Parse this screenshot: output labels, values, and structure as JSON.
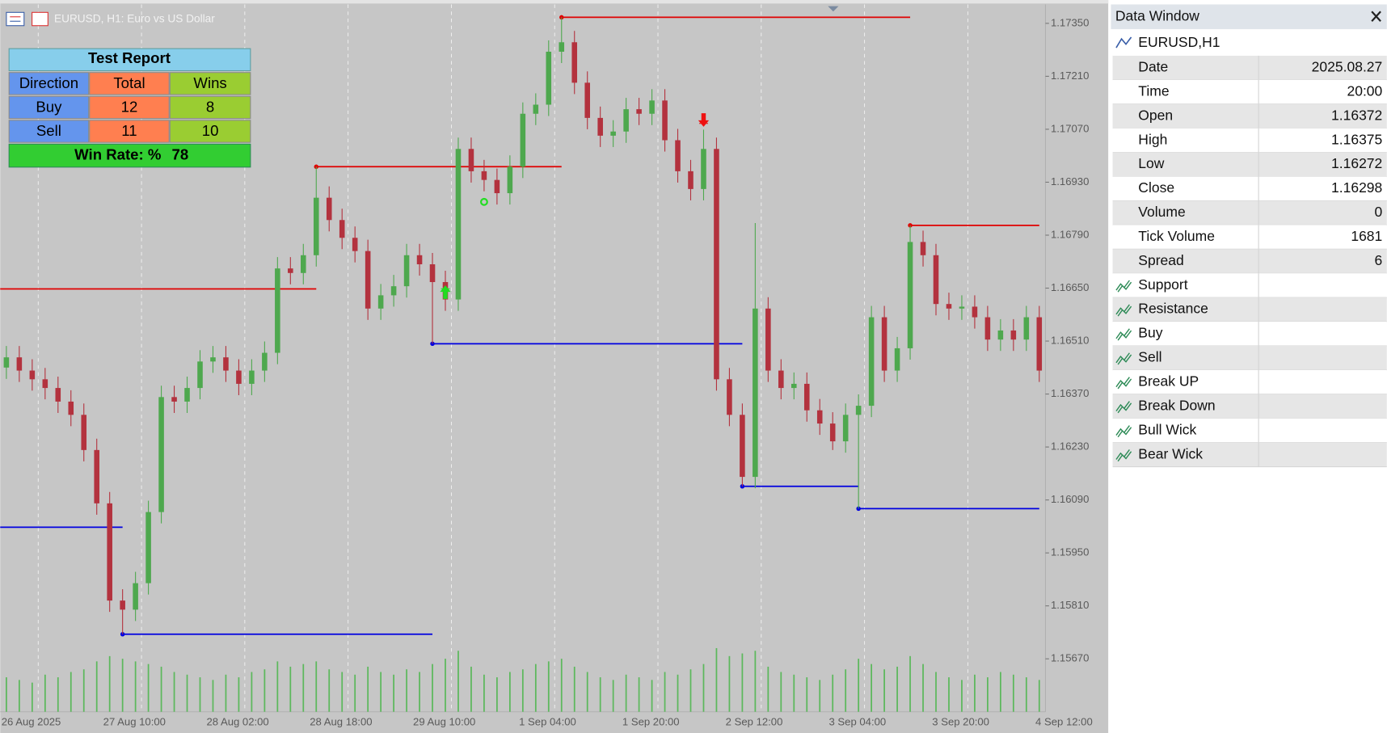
{
  "chart": {
    "type": "candlestick",
    "header": "EURUSD, H1:  Euro vs US Dollar",
    "ylim": [
      1.1553,
      1.174
    ],
    "yticks": [
      {
        "value": 1.1735,
        "label": "1.17350"
      },
      {
        "value": 1.1721,
        "label": "1.17210"
      },
      {
        "value": 1.1707,
        "label": "1.17070"
      },
      {
        "value": 1.1693,
        "label": "1.16930"
      },
      {
        "value": 1.1679,
        "label": "1.16790"
      },
      {
        "value": 1.1665,
        "label": "1.16650"
      },
      {
        "value": 1.1651,
        "label": "1.16510"
      },
      {
        "value": 1.1637,
        "label": "1.16370"
      },
      {
        "value": 1.1623,
        "label": "1.16230"
      },
      {
        "value": 1.1609,
        "label": "1.16090"
      },
      {
        "value": 1.1595,
        "label": "1.15950"
      },
      {
        "value": 1.1581,
        "label": "1.15810"
      },
      {
        "value": 1.1567,
        "label": "1.15670"
      }
    ],
    "xlabels": [
      "26 Aug 2025",
      "27 Aug 10:00",
      "28 Aug 02:00",
      "28 Aug 18:00",
      "29 Aug 10:00",
      "1 Sep 04:00",
      "1 Sep 20:00",
      "2 Sep 12:00",
      "3 Sep 04:00",
      "3 Sep 20:00",
      "4 Sep 12:00"
    ],
    "candles": {
      "open": [
        1.1644,
        1.16467,
        1.16432,
        1.16409,
        1.16386,
        1.1635,
        1.16315,
        1.16222,
        1.16081,
        1.15824,
        1.158,
        1.1587,
        1.16058,
        1.16362,
        1.1635,
        1.16386,
        1.16456,
        1.16467,
        1.16432,
        1.16397,
        1.16432,
        1.16479,
        1.16702,
        1.1669,
        1.16737,
        1.16889,
        1.1683,
        1.16783,
        1.16748,
        1.16596,
        1.16631,
        1.16655,
        1.16737,
        1.16713,
        1.16666,
        1.1662,
        1.17018,
        1.16959,
        1.16936,
        1.16901,
        1.16971,
        1.17111,
        1.17135,
        1.17275,
        1.173,
        1.17193,
        1.171,
        1.17053,
        1.17064,
        1.17123,
        1.17111,
        1.17146,
        1.17041,
        1.16959,
        1.16912,
        1.17018,
        1.16409,
        1.16315,
        1.16151,
        1.16596,
        1.16432,
        1.16386,
        1.16397,
        1.16327,
        1.16292,
        1.16245,
        1.16315,
        1.16339,
        1.16573,
        1.16432,
        1.16491,
        1.16772,
        1.16737,
        1.16608,
        1.16596,
        1.16601,
        1.16573,
        1.16514,
        1.16538,
        1.16514,
        1.16573
      ],
      "high": [
        1.16497,
        1.16497,
        1.16462,
        1.16439,
        1.16416,
        1.1638,
        1.16345,
        1.16252,
        1.16111,
        1.15854,
        1.159,
        1.16088,
        1.16392,
        1.16392,
        1.16416,
        1.16486,
        1.16497,
        1.16497,
        1.16462,
        1.16462,
        1.16509,
        1.16732,
        1.16732,
        1.16767,
        1.16971,
        1.16919,
        1.1686,
        1.16813,
        1.16778,
        1.16661,
        1.16685,
        1.16767,
        1.16767,
        1.16743,
        1.16696,
        1.17048,
        1.17048,
        1.16989,
        1.16966,
        1.17001,
        1.17141,
        1.17165,
        1.17305,
        1.17366,
        1.1733,
        1.17223,
        1.1713,
        1.17094,
        1.17153,
        1.17153,
        1.17176,
        1.17176,
        1.17071,
        1.16989,
        1.17069,
        1.17048,
        1.16439,
        1.16345,
        1.16822,
        1.16626,
        1.16462,
        1.16427,
        1.16427,
        1.16357,
        1.16322,
        1.16345,
        1.16369,
        1.16603,
        1.16603,
        1.16521,
        1.16816,
        1.16802,
        1.16767,
        1.16638,
        1.16631,
        1.16631,
        1.16603,
        1.16568,
        1.16568,
        1.16603,
        1.16603
      ],
      "low": [
        1.1641,
        1.16402,
        1.16379,
        1.16356,
        1.1632,
        1.16285,
        1.16192,
        1.16051,
        1.15794,
        1.15735,
        1.1577,
        1.1584,
        1.16028,
        1.1632,
        1.1632,
        1.16356,
        1.16426,
        1.16402,
        1.16367,
        1.16367,
        1.16402,
        1.16449,
        1.1666,
        1.1666,
        1.16707,
        1.168,
        1.16753,
        1.16718,
        1.16566,
        1.16566,
        1.16601,
        1.16625,
        1.16683,
        1.16503,
        1.1659,
        1.1659,
        1.16929,
        1.16906,
        1.16871,
        1.16871,
        1.16941,
        1.17081,
        1.17105,
        1.17245,
        1.17163,
        1.1707,
        1.17023,
        1.17023,
        1.17034,
        1.17081,
        1.17081,
        1.17011,
        1.16929,
        1.16882,
        1.16882,
        1.16379,
        1.16285,
        1.16126,
        1.16121,
        1.16402,
        1.16356,
        1.16356,
        1.16297,
        1.16262,
        1.16222,
        1.16215,
        1.16067,
        1.16309,
        1.16402,
        1.16402,
        1.16461,
        1.16707,
        1.16578,
        1.16566,
        1.16566,
        1.16543,
        1.16484,
        1.16484,
        1.16484,
        1.16484,
        1.16402
      ],
      "close": [
        1.16467,
        1.16432,
        1.16409,
        1.16386,
        1.1635,
        1.16315,
        1.16222,
        1.16081,
        1.15824,
        1.158,
        1.1587,
        1.16058,
        1.16362,
        1.1635,
        1.16386,
        1.16456,
        1.16467,
        1.16432,
        1.16397,
        1.16432,
        1.16479,
        1.16702,
        1.1669,
        1.16737,
        1.16889,
        1.1683,
        1.16783,
        1.16748,
        1.16596,
        1.16631,
        1.16655,
        1.16737,
        1.16713,
        1.16666,
        1.1662,
        1.17018,
        1.16959,
        1.16936,
        1.16901,
        1.16971,
        1.17111,
        1.17135,
        1.17275,
        1.173,
        1.17193,
        1.171,
        1.17053,
        1.17064,
        1.17123,
        1.17111,
        1.17146,
        1.17041,
        1.16959,
        1.16912,
        1.17018,
        1.16409,
        1.16315,
        1.16151,
        1.16596,
        1.16432,
        1.16386,
        1.16397,
        1.16327,
        1.16292,
        1.16245,
        1.16315,
        1.16339,
        1.16573,
        1.16432,
        1.16491,
        1.16772,
        1.16737,
        1.16608,
        1.16596,
        1.16601,
        1.16573,
        1.16514,
        1.16538,
        1.16514,
        1.16573,
        1.16432
      ],
      "up_color": "#4ea84e",
      "down_color": "#b3323e"
    },
    "volumes": [
      1300,
      1200,
      1100,
      1400,
      1300,
      1500,
      1600,
      1900,
      2100,
      2000,
      1900,
      1800,
      1700,
      1500,
      1400,
      1300,
      1200,
      1400,
      1300,
      1500,
      1600,
      1900,
      1700,
      1800,
      1900,
      1600,
      1500,
      1400,
      1700,
      1500,
      1400,
      1600,
      1500,
      1800,
      2000,
      2300,
      1700,
      1400,
      1300,
      1500,
      1600,
      1800,
      1900,
      2000,
      1700,
      1500,
      1300,
      1200,
      1400,
      1300,
      1200,
      1500,
      1400,
      1600,
      1800,
      2400,
      2100,
      2200,
      2300,
      1700,
      1500,
      1400,
      1300,
      1200,
      1400,
      1600,
      2000,
      1800,
      1600,
      1700,
      2100,
      1800,
      1500,
      1300,
      1200,
      1400,
      1300,
      1500,
      1400,
      1300,
      1200
    ],
    "volume_lim": [
      0,
      3000
    ],
    "volume_color": "#5cb85c",
    "resistance": {
      "color": "#e00000",
      "levels": [
        {
          "price": 1.16648,
          "from": 0,
          "to": 24
        },
        {
          "price": 1.16971,
          "from": 24,
          "to": 43
        },
        {
          "price": 1.17366,
          "from": 43,
          "to": 70
        },
        {
          "price": 1.16816,
          "from": 70,
          "to": 80
        }
      ]
    },
    "support": {
      "color": "#0000e0",
      "levels": [
        {
          "price": 1.16018,
          "from": 0,
          "to": 9
        },
        {
          "price": 1.15735,
          "from": 9,
          "to": 33
        },
        {
          "price": 1.16503,
          "from": 33,
          "to": 57
        },
        {
          "price": 1.16126,
          "from": 57,
          "to": 66
        },
        {
          "price": 1.16067,
          "from": 66,
          "to": 80
        }
      ]
    },
    "buy_signals": [
      34
    ],
    "sell_signals": [
      54
    ],
    "bull_wick_signals": [
      37
    ]
  },
  "test_report": {
    "title": "Test Report",
    "headers": [
      "Direction",
      "Total",
      "Wins"
    ],
    "rows": [
      [
        "Buy",
        12,
        8
      ],
      [
        "Sell",
        11,
        10
      ]
    ],
    "win_rate_label": "Win Rate: %",
    "win_rate": 78
  },
  "data_window": {
    "title": "Data Window",
    "symbol": "EURUSD,H1",
    "rows": [
      [
        "Date",
        "2025.08.27"
      ],
      [
        "Time",
        "20:00"
      ],
      [
        "Open",
        1.16372
      ],
      [
        "High",
        1.16375
      ],
      [
        "Low",
        1.16272
      ],
      [
        "Close",
        1.16298
      ],
      [
        "Volume",
        0
      ],
      [
        "Tick Volume",
        1681
      ],
      [
        "Spread",
        6
      ]
    ],
    "indicators": [
      "Support",
      "Resistance",
      "Buy",
      "Sell",
      "Break UP",
      "Break Down",
      "Bull Wick",
      "Bear Wick"
    ]
  }
}
